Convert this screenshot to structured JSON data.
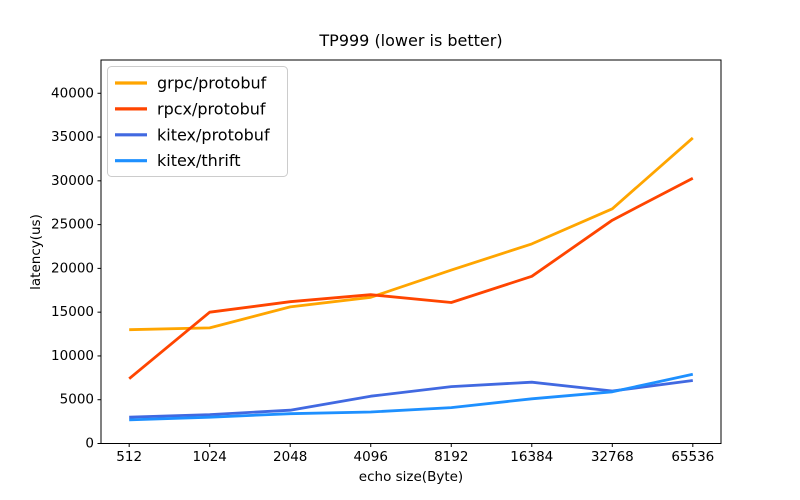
{
  "chart_data": {
    "type": "line",
    "title": "TP999 (lower is better)",
    "xlabel": "echo size(Byte)",
    "ylabel": "latency(us)",
    "categories": [
      "512",
      "1024",
      "2048",
      "4096",
      "8192",
      "16384",
      "32768",
      "65536"
    ],
    "series": [
      {
        "name": "grpc/protobuf",
        "color": "#FFA500",
        "values": [
          13000,
          13200,
          15600,
          16700,
          19800,
          22800,
          26800,
          34900
        ]
      },
      {
        "name": "rpcx/protobuf",
        "color": "#FF4500",
        "values": [
          7400,
          15000,
          16200,
          17000,
          16100,
          19100,
          25500,
          30300
        ]
      },
      {
        "name": "kitex/protobuf",
        "color": "#4169E1",
        "values": [
          3000,
          3300,
          3800,
          5400,
          6500,
          7000,
          6000,
          7200
        ]
      },
      {
        "name": "kitex/thrift",
        "color": "#1E90FF",
        "values": [
          2700,
          3000,
          3400,
          3600,
          4100,
          5100,
          5900,
          7900
        ]
      }
    ],
    "yticks": [
      0,
      5000,
      10000,
      15000,
      20000,
      25000,
      30000,
      35000,
      40000
    ],
    "ylim": [
      0,
      43800
    ],
    "grid": false,
    "legend_position": "upper left",
    "axis_color": "#000000",
    "tick_label_color": "#000000",
    "background_color": "#FFFFFF",
    "legend_border_color": "#CCCCCC",
    "legend_background": "#FFFFFF"
  }
}
